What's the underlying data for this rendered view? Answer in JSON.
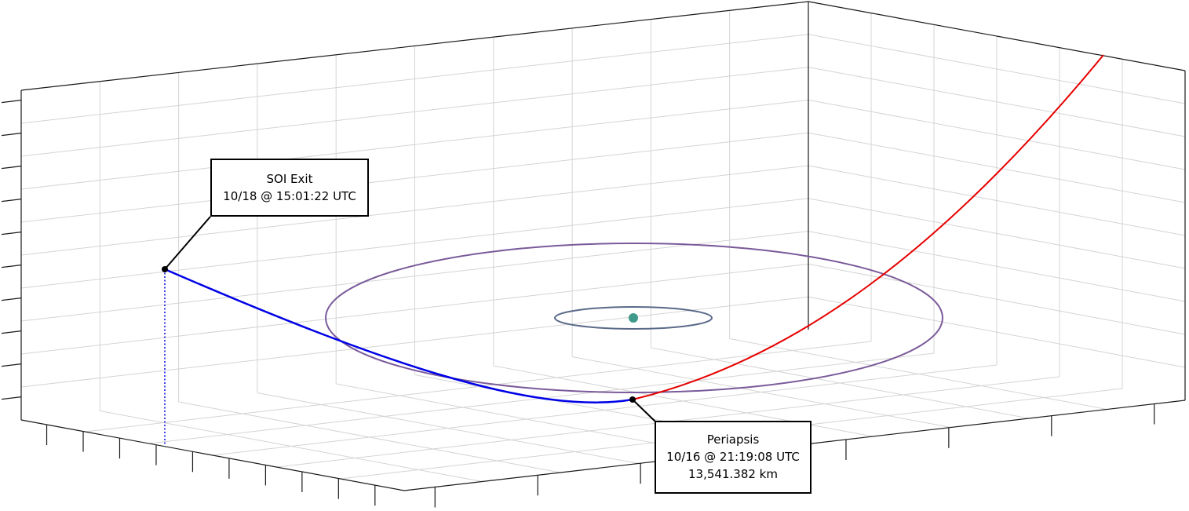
{
  "colors": {
    "escape_leg": "#0000e6",
    "departure_leg": "#e60000",
    "outer_orbit": "#7a5a9a",
    "inner_orbit": "#5a6a88",
    "planet": "#3f9a8a",
    "grid": "#d4d4d4",
    "axes": "#1a1a1a"
  },
  "callouts": {
    "soi_exit": {
      "title": "SOI Exit",
      "time": "10/18 @ 15:01:22 UTC"
    },
    "periapsis": {
      "title": "Periapsis",
      "time": "10/16 @ 21:19:08 UTC",
      "altitude": "13,541.382 km"
    }
  }
}
